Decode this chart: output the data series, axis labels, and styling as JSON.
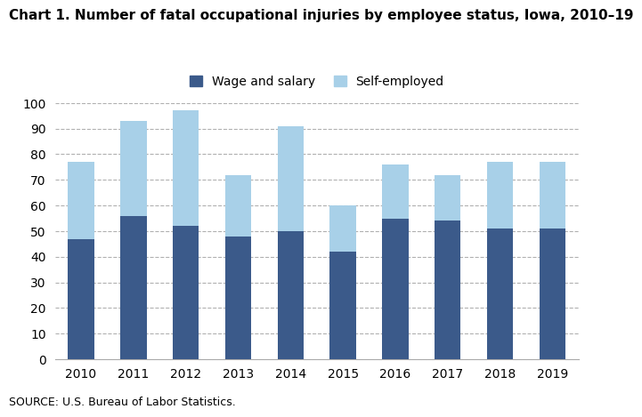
{
  "title": "Chart 1. Number of fatal occupational injuries by employee status, Iowa, 2010–19",
  "years": [
    2010,
    2011,
    2012,
    2013,
    2014,
    2015,
    2016,
    2017,
    2018,
    2019
  ],
  "wage_and_salary": [
    47,
    56,
    52,
    48,
    50,
    42,
    55,
    54,
    51,
    51
  ],
  "self_employed": [
    30,
    37,
    45,
    24,
    41,
    18,
    21,
    18,
    26,
    26
  ],
  "wage_color": "#3B5A8A",
  "self_color": "#A8D0E8",
  "ylim": [
    0,
    100
  ],
  "yticks": [
    0,
    10,
    20,
    30,
    40,
    50,
    60,
    70,
    80,
    90,
    100
  ],
  "legend_wage": "Wage and salary",
  "legend_self": "Self-employed",
  "source": "SOURCE: U.S. Bureau of Labor Statistics.",
  "background_color": "#ffffff",
  "grid_color": "#b0b0b0",
  "title_fontsize": 11,
  "legend_fontsize": 10,
  "tick_fontsize": 10,
  "source_fontsize": 9,
  "bar_width": 0.5
}
